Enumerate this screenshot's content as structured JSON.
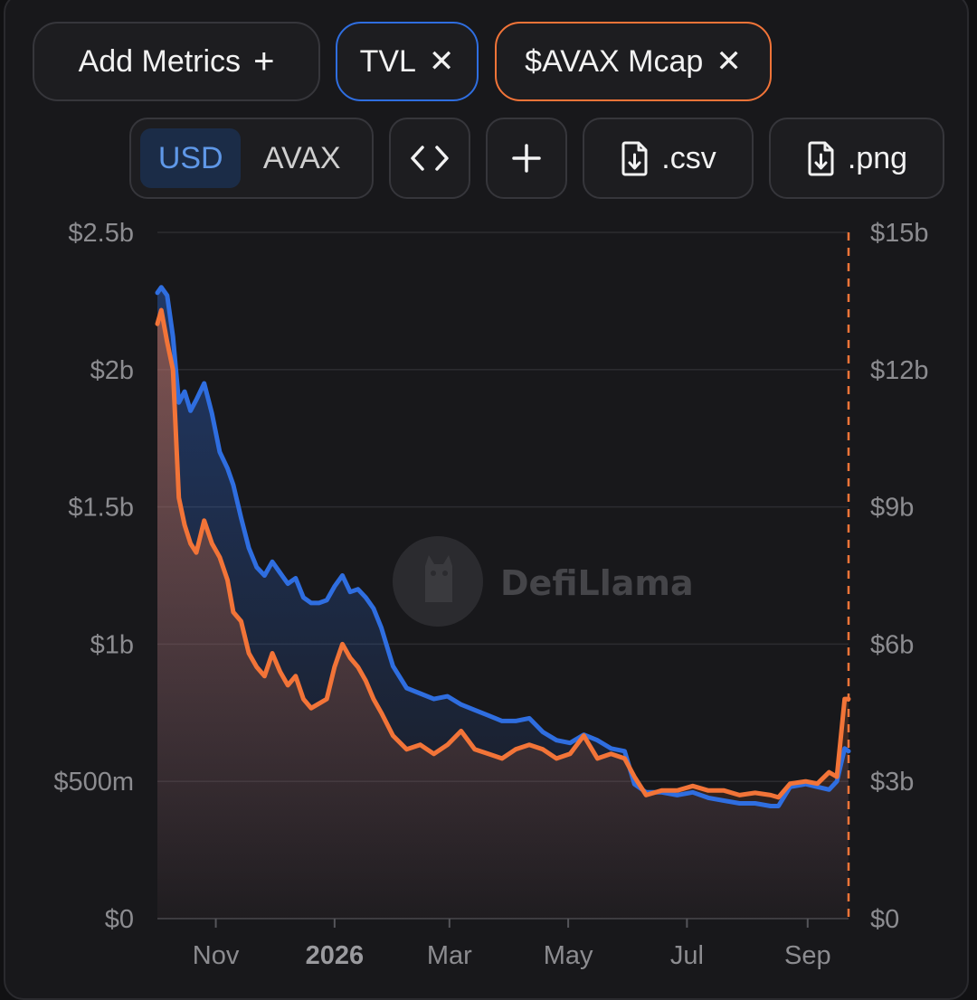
{
  "toolbar": {
    "add_metrics_label": "Add Metrics",
    "add_icon": "plus-icon",
    "metric_tvl_label": "TVL",
    "metric_mcap_label": "$AVAX Mcap",
    "remove_icon": "close-icon",
    "currency_options": [
      "USD",
      "AVAX"
    ],
    "currency_selected": "USD",
    "embed_icon": "code-brackets-icon",
    "add_chart_icon": "plus-icon",
    "csv_label": ".csv",
    "png_label": ".png",
    "download_icon": "file-download-icon"
  },
  "watermark": {
    "text": "DefiLlama",
    "logo_icon": "llama-logo-icon"
  },
  "colors": {
    "tvl": "#2f6ee0",
    "mcap": "#f27438",
    "background": "#18181b"
  },
  "chart_data": {
    "type": "line",
    "xlabel": "",
    "ylabel": "",
    "x_tick_labels": [
      "Nov",
      "2026",
      "Mar",
      "May",
      "Jul",
      "Sep"
    ],
    "x_range": [
      "2025-10-02",
      "2026-09-22"
    ],
    "left_axis": {
      "ticks": [
        "$0",
        "$500m",
        "$1b",
        "$1.5b",
        "$2b",
        "$2.5b"
      ],
      "ylim": [
        0,
        2500000000
      ]
    },
    "right_axis": {
      "ticks": [
        "$0",
        "$3b",
        "$6b",
        "$9b",
        "$12b",
        "$15b"
      ],
      "ylim": [
        0,
        15000000000
      ]
    },
    "grid": true,
    "legend": "none",
    "series": [
      {
        "name": "TVL",
        "axis": "left",
        "x": [
          "2025-10-02",
          "2025-10-04",
          "2025-10-07",
          "2025-10-10",
          "2025-10-13",
          "2025-10-16",
          "2025-10-19",
          "2025-10-22",
          "2025-10-26",
          "2025-10-30",
          "2025-11-03",
          "2025-11-07",
          "2025-11-10",
          "2025-11-14",
          "2025-11-18",
          "2025-11-22",
          "2025-11-26",
          "2025-11-30",
          "2025-12-04",
          "2025-12-08",
          "2025-12-12",
          "2025-12-16",
          "2025-12-20",
          "2025-12-24",
          "2025-12-28",
          "2026-01-01",
          "2026-01-05",
          "2026-01-09",
          "2026-01-13",
          "2026-01-17",
          "2026-01-21",
          "2026-01-25",
          "2026-01-31",
          "2026-02-07",
          "2026-02-14",
          "2026-02-21",
          "2026-02-28",
          "2026-03-07",
          "2026-03-14",
          "2026-03-21",
          "2026-03-28",
          "2026-04-04",
          "2026-04-11",
          "2026-04-18",
          "2026-04-25",
          "2026-05-02",
          "2026-05-09",
          "2026-05-16",
          "2026-05-23",
          "2026-05-30",
          "2026-06-04",
          "2026-06-10",
          "2026-06-18",
          "2026-06-26",
          "2026-07-04",
          "2026-07-12",
          "2026-07-20",
          "2026-07-28",
          "2026-08-05",
          "2026-08-13",
          "2026-08-17",
          "2026-08-23",
          "2026-08-31",
          "2026-09-06",
          "2026-09-12",
          "2026-09-16",
          "2026-09-20",
          "2026-09-22"
        ],
        "values": [
          2280000000,
          2300000000,
          2270000000,
          2120000000,
          1880000000,
          1920000000,
          1850000000,
          1890000000,
          1950000000,
          1840000000,
          1700000000,
          1640000000,
          1580000000,
          1460000000,
          1350000000,
          1280000000,
          1250000000,
          1300000000,
          1260000000,
          1220000000,
          1240000000,
          1170000000,
          1150000000,
          1150000000,
          1160000000,
          1210000000,
          1250000000,
          1190000000,
          1200000000,
          1170000000,
          1130000000,
          1060000000,
          920000000,
          840000000,
          820000000,
          800000000,
          810000000,
          780000000,
          760000000,
          740000000,
          720000000,
          720000000,
          730000000,
          680000000,
          650000000,
          640000000,
          670000000,
          650000000,
          620000000,
          610000000,
          490000000,
          460000000,
          460000000,
          450000000,
          460000000,
          440000000,
          430000000,
          420000000,
          420000000,
          410000000,
          410000000,
          480000000,
          490000000,
          480000000,
          470000000,
          500000000,
          620000000,
          610000000
        ]
      },
      {
        "name": "$AVAX Mcap",
        "axis": "right",
        "x": [
          "2025-10-02",
          "2025-10-04",
          "2025-10-07",
          "2025-10-10",
          "2025-10-13",
          "2025-10-16",
          "2025-10-19",
          "2025-10-22",
          "2025-10-26",
          "2025-10-30",
          "2025-11-03",
          "2025-11-07",
          "2025-11-10",
          "2025-11-14",
          "2025-11-18",
          "2025-11-22",
          "2025-11-26",
          "2025-11-30",
          "2025-12-04",
          "2025-12-08",
          "2025-12-12",
          "2025-12-16",
          "2025-12-20",
          "2025-12-24",
          "2025-12-28",
          "2026-01-01",
          "2026-01-05",
          "2026-01-09",
          "2026-01-13",
          "2026-01-17",
          "2026-01-21",
          "2026-01-25",
          "2026-01-31",
          "2026-02-07",
          "2026-02-14",
          "2026-02-21",
          "2026-02-28",
          "2026-03-07",
          "2026-03-14",
          "2026-03-21",
          "2026-03-28",
          "2026-04-04",
          "2026-04-11",
          "2026-04-18",
          "2026-04-25",
          "2026-05-02",
          "2026-05-09",
          "2026-05-16",
          "2026-05-23",
          "2026-05-30",
          "2026-06-04",
          "2026-06-10",
          "2026-06-18",
          "2026-06-26",
          "2026-07-04",
          "2026-07-12",
          "2026-07-20",
          "2026-07-28",
          "2026-08-05",
          "2026-08-13",
          "2026-08-17",
          "2026-08-23",
          "2026-08-31",
          "2026-09-06",
          "2026-09-12",
          "2026-09-16",
          "2026-09-20",
          "2026-09-22"
        ],
        "values": [
          13000000000,
          13300000000,
          12600000000,
          12000000000,
          9200000000,
          8600000000,
          8200000000,
          8000000000,
          8700000000,
          8200000000,
          7900000000,
          7400000000,
          6700000000,
          6500000000,
          5800000000,
          5500000000,
          5300000000,
          5800000000,
          5400000000,
          5100000000,
          5300000000,
          4800000000,
          4600000000,
          4700000000,
          4800000000,
          5500000000,
          6000000000,
          5700000000,
          5500000000,
          5200000000,
          4800000000,
          4500000000,
          4000000000,
          3700000000,
          3800000000,
          3600000000,
          3800000000,
          4100000000,
          3700000000,
          3600000000,
          3500000000,
          3700000000,
          3800000000,
          3700000000,
          3500000000,
          3600000000,
          4000000000,
          3500000000,
          3600000000,
          3500000000,
          3100000000,
          2700000000,
          2800000000,
          2800000000,
          2900000000,
          2800000000,
          2800000000,
          2700000000,
          2750000000,
          2700000000,
          2650000000,
          2950000000,
          3000000000,
          2950000000,
          3200000000,
          3100000000,
          4800000000,
          4800000000
        ]
      }
    ]
  }
}
